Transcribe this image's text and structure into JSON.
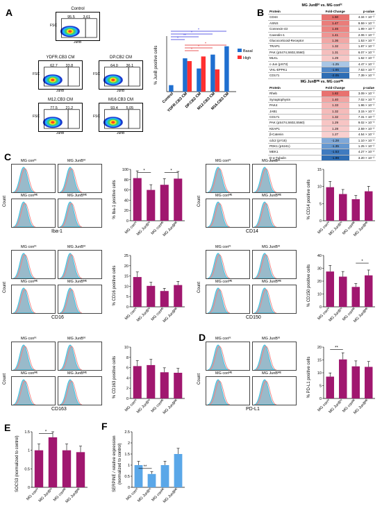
{
  "panels": {
    "A": "A",
    "B": "B",
    "C": "C",
    "D": "D",
    "E": "E",
    "F": "F"
  },
  "flow": {
    "ylabel": "FSC",
    "xlabel": "JunB",
    "plots": [
      {
        "title": "Control",
        "left": "95.5",
        "right": "3.61"
      },
      {
        "title": "YDFR.CB3 CM",
        "left": "62.7",
        "right": "33.8"
      },
      {
        "title": "DP.CB2 CM",
        "left": "64.0",
        "right": "36.1"
      },
      {
        "title": "M12.CB3 CM",
        "left": "77.5",
        "right": "21.2"
      },
      {
        "title": "M16.CB3 CM",
        "left": "93.4",
        "right": "5.05"
      }
    ]
  },
  "junb_chart": {
    "ylabel": "% JunB positive cells",
    "legend": [
      "Basal",
      "High"
    ],
    "categories": [
      "Control",
      "YDFR.CB3 CM",
      "DP.CB2 CM",
      "M12.CB3 CM",
      "M16.CB3 CM"
    ],
    "star": "*",
    "dstar": "**"
  },
  "table1": {
    "title": "MG JunBʰᵗ vs. MG conʰᵗ",
    "headers": [
      "Protein",
      "Fold-Change",
      "p-value"
    ],
    "rows": [
      {
        "protein": "CD44",
        "fc": "1.50",
        "p": "4.34 × 10⁻²",
        "color": "#e8726f"
      },
      {
        "protein": "ASNS",
        "fc": "1.47",
        "p": "9.59 × 10⁻³",
        "color": "#ea7d7a"
      },
      {
        "protein": "Connexin-43",
        "fc": "1.46",
        "p": "1.99 × 10⁻²",
        "color": "#eb8380"
      },
      {
        "protein": "Caveolin-1",
        "fc": "1.41",
        "p": "2.06 × 10⁻²",
        "color": "#ee9593"
      },
      {
        "protein": "Glucocorticoid-Receptor",
        "fc": "1.36",
        "p": "1.53 × 10⁻²",
        "color": "#f1a7a5"
      },
      {
        "protein": "TRAP1",
        "fc": "1.32",
        "p": "1.87 × 10⁻²",
        "color": "#f4b7b6"
      },
      {
        "protein": "PAK (pS474,S602,S560)",
        "fc": "1.31",
        "p": "6.07 × 10⁻³",
        "color": "#f5bebd"
      },
      {
        "protein": "MLKL",
        "fc": "1.29",
        "p": "1.62 × 10⁻²",
        "color": "#f7c8c7"
      },
      {
        "protein": "c-Jun (pS73)",
        "fc": "-1.25",
        "p": "4.47 × 10⁻²",
        "color": "#a9c6e5"
      },
      {
        "protein": "VHL-EPPK1",
        "fc": "-1.65",
        "p": "7.63 × 10⁻²",
        "color": "#4f86c6"
      },
      {
        "protein": "CD171",
        "fc": "-2.05",
        "p": "7.39 × 10⁻³",
        "color": "#2e6db4"
      }
    ]
  },
  "table2": {
    "title": "MG JunBᴹᴱ vs. MG conᴹᴱ",
    "headers": [
      "Protein",
      "Fold-Change",
      "p-value"
    ],
    "rows": [
      {
        "protein": "Rheb",
        "fc": "1.82",
        "p": "3.09 × 10⁻²",
        "color": "#e8726f"
      },
      {
        "protein": "Synaptophysin",
        "fc": "1.40",
        "p": "7.02 × 10⁻³",
        "color": "#f1a5a3"
      },
      {
        "protein": "PAK4",
        "fc": "1.33",
        "p": "1.96 × 10⁻²",
        "color": "#f4b6b5"
      },
      {
        "protein": "JAB1",
        "fc": "1.32",
        "p": "3.15 × 10⁻²",
        "color": "#f5bbba"
      },
      {
        "protein": "CD171",
        "fc": "1.32",
        "p": "7.31 × 10⁻³",
        "color": "#f5bbba"
      },
      {
        "protein": "PAK (pS474,S602,S560)",
        "fc": "1.29",
        "p": "9.02 × 10⁻³",
        "color": "#f7c5c4"
      },
      {
        "protein": "KEAP1",
        "fc": "1.28",
        "p": "2.59 × 10⁻²",
        "color": "#f8caca"
      },
      {
        "protein": "β-Catenin",
        "fc": "1.27",
        "p": "4.54 × 10⁻²",
        "color": "#f9cfcf"
      },
      {
        "protein": "cdc2 (pY15)",
        "fc": "-1.28",
        "p": "1.10 × 10⁻²",
        "color": "#7fa8d8"
      },
      {
        "protein": "PDK1 (pS241)",
        "fc": "-1.35",
        "p": "1.25 × 10⁻²",
        "color": "#6597cf"
      },
      {
        "protein": "MEK1",
        "fc": "-1.53",
        "p": "4.27 × 10⁻²",
        "color": "#3f7bc0"
      },
      {
        "protein": "D-α-Tubulin",
        "fc": "-1.98",
        "p": "3.20 × 10⁻²",
        "color": "#2e6db4"
      }
    ]
  },
  "hist": {
    "count": "Count",
    "con_label": "MG conʰᵗ",
    "junb_label": "MG JunBʰᵗ",
    "con_label_le": "MG conᴹᴱ",
    "junb_label_le": "MG JunBᴹᴱ",
    "markers": [
      "Iba-1",
      "CD14",
      "CD16",
      "CD150",
      "CD163",
      "PD-L1"
    ]
  },
  "group_labels": [
    "MG conʰᵗ",
    "MG JunBʰᵗ",
    "MG conᴹᴱ",
    "MG JunBᴹᴱ"
  ],
  "bar_ylabels": {
    "iba1": "% Iba-1 positive cells",
    "cd14": "% CD14 positive cells",
    "cd16": "% CD16 positive cells",
    "cd150": "% CD150 positive cells",
    "cd163": "% CD163 positive cells",
    "pdl1": "% PD-L1 positive cells",
    "socs3": "SOCS3 (normalized to control)",
    "serpine_l1": "SERPINE / relative expression",
    "serpine_l2": "(normalized to control)"
  },
  "colors": {
    "magenta": "#a0176f",
    "blue": "#1f6fd0",
    "red": "#ff3030",
    "lightblue": "#5aa7e8",
    "cyan": "#33c6e6",
    "salmon": "#f08080"
  },
  "chart_data": [
    {
      "type": "bar",
      "id": "junb",
      "categories": [
        "Control",
        "YDFR.CB3 CM",
        "DP.CB2 CM",
        "M12.CB3 CM",
        "M16.CB3 CM"
      ],
      "series": [
        {
          "name": "Basal",
          "values": [
            7,
            36,
            25,
            40,
            49
          ]
        },
        {
          "name": "High",
          "values": [
            null,
            33,
            38,
            24,
            null
          ]
        }
      ],
      "ylabel": "% JunB positive cells",
      "ylim": [
        0,
        60
      ]
    },
    {
      "type": "bar",
      "id": "iba1",
      "categories": [
        "MG con",
        "MG JunB",
        "MG con",
        "MG JunB"
      ],
      "values": [
        83,
        60,
        70,
        82
      ],
      "ylim": [
        0,
        100
      ],
      "yticks": [
        0,
        20,
        40,
        60,
        80,
        100
      ]
    },
    {
      "type": "bar",
      "id": "cd14",
      "categories": [
        "MG con",
        "MG JunB",
        "MG con",
        "MG JunB"
      ],
      "values": [
        9.8,
        7.8,
        6.3,
        8.6
      ],
      "ylim": [
        0,
        15
      ],
      "yticks": [
        0,
        5,
        10,
        15
      ]
    },
    {
      "type": "bar",
      "id": "cd16",
      "categories": [
        "MG con",
        "MG JunB",
        "MG con",
        "MG JunB"
      ],
      "values": [
        14.5,
        10.2,
        7.7,
        10.6
      ],
      "ylim": [
        0,
        25
      ],
      "yticks": [
        0,
        5,
        10,
        15,
        20,
        25
      ]
    },
    {
      "type": "bar",
      "id": "cd150",
      "categories": [
        "MG con",
        "MG JunB",
        "MG con",
        "MG JunB"
      ],
      "values": [
        27.5,
        23.5,
        15.5,
        24.5
      ],
      "ylim": [
        0,
        40
      ],
      "yticks": [
        0,
        10,
        20,
        30,
        40
      ]
    },
    {
      "type": "bar",
      "id": "cd163",
      "categories": [
        "MG con",
        "MG JunB",
        "MG con",
        "MG JunB"
      ],
      "values": [
        6.3,
        6.5,
        5.1,
        5.0
      ],
      "ylim": [
        0,
        10
      ],
      "yticks": [
        0,
        2,
        4,
        6,
        8,
        10
      ]
    },
    {
      "type": "bar",
      "id": "pdl1",
      "categories": [
        "MG con",
        "MG JunB",
        "MG con",
        "MG JunB"
      ],
      "values": [
        8.5,
        15.2,
        12.5,
        12.3
      ],
      "ylim": [
        0,
        20
      ],
      "yticks": [
        0,
        5,
        10,
        15,
        20
      ]
    },
    {
      "type": "bar",
      "id": "socs3",
      "categories": [
        "MG con",
        "MG JunB",
        "MG con",
        "MG JunB"
      ],
      "values": [
        1.0,
        1.35,
        1.0,
        0.95
      ],
      "ylim": [
        0,
        1.5
      ],
      "yticks": [
        0,
        0.5,
        1.0,
        1.5
      ]
    },
    {
      "type": "bar",
      "id": "serpine",
      "categories": [
        "MG con",
        "MG JunB",
        "MG con",
        "MG JunB"
      ],
      "values": [
        1.0,
        0.6,
        1.0,
        1.5
      ],
      "ylim": [
        0,
        2.5
      ],
      "yticks": [
        0,
        0.5,
        1.0,
        1.5,
        2.0,
        2.5
      ]
    }
  ]
}
